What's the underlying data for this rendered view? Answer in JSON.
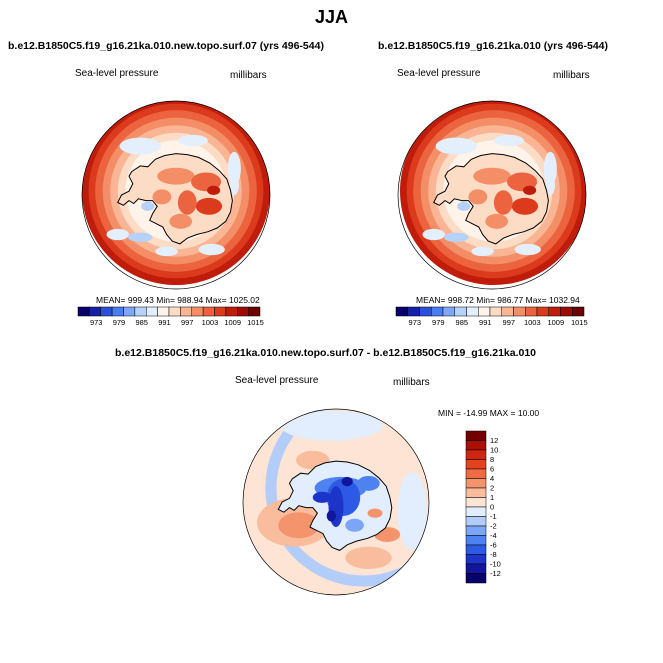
{
  "page": {
    "title": "JJA"
  },
  "panels": [
    {
      "case_title": "b.e12.B1850C5.f19_g16.21ka.010.new.topo.surf.07 (yrs 496-544)",
      "variable": "Sea-level pressure",
      "units": "millibars",
      "stats_text": "MEAN= 999.43  Min= 988.94  Max= 1025.02"
    },
    {
      "case_title": "b.e12.B1850C5.f19_g16.21ka.010 (yrs 496-544)",
      "variable": "Sea-level pressure",
      "units": "millibars",
      "stats_text": "MEAN= 998.72  Min= 986.77  Max= 1032.94"
    },
    {
      "case_title": "b.e12.B1850C5.f19_g16.21ka.010.new.topo.surf.07 - b.e12.B1850C5.f19_g16.21ka.010",
      "variable": "Sea-level pressure",
      "units": "millibars",
      "stats_text": "MIN = -14.99 MAX = 10.00"
    }
  ],
  "colors": {
    "seq": [
      "#08006b",
      "#1421a8",
      "#2a4fd8",
      "#4a7ef0",
      "#7ea8f6",
      "#b6d2fa",
      "#e4effd",
      "#fff3ea",
      "#fddcc6",
      "#f9b594",
      "#f48e67",
      "#ec643f",
      "#dc3a1c",
      "#bf1c0c",
      "#9a0c05",
      "#6e0200"
    ],
    "diff": [
      "#08006b",
      "#12169d",
      "#1c34c8",
      "#2c5ae4",
      "#4d82f0",
      "#7ba5f6",
      "#b2cdfa",
      "#e2edfd",
      "#fde4d4",
      "#f9bc9c",
      "#f4946d",
      "#ee6b44",
      "#e4431f",
      "#cf2410",
      "#aa1006",
      "#730100"
    ]
  },
  "chart_data": [
    {
      "type": "heatmap",
      "title": "Sea-level pressure",
      "units": "millibars",
      "projection": "south polar stereographic",
      "stats": {
        "mean": 999.43,
        "min": 988.94,
        "max": 1025.02
      },
      "colorbar": {
        "orientation": "horizontal",
        "labels": [
          973,
          979,
          985,
          991,
          997,
          1003,
          1009,
          1015
        ]
      }
    },
    {
      "type": "heatmap",
      "title": "Sea-level pressure",
      "units": "millibars",
      "projection": "south polar stereographic",
      "stats": {
        "mean": 998.72,
        "min": 986.77,
        "max": 1032.94
      },
      "colorbar": {
        "orientation": "horizontal",
        "labels": [
          973,
          979,
          985,
          991,
          997,
          1003,
          1009,
          1015
        ]
      }
    },
    {
      "type": "heatmap",
      "title": "Sea-level pressure",
      "units": "millibars",
      "projection": "south polar stereographic",
      "stats": {
        "min": -14.99,
        "max": 10.0
      },
      "colorbar": {
        "orientation": "vertical",
        "labels": [
          12,
          10,
          8,
          6,
          4,
          2,
          1,
          0,
          -1,
          -2,
          -4,
          -6,
          -8,
          -10,
          -12
        ]
      }
    }
  ]
}
